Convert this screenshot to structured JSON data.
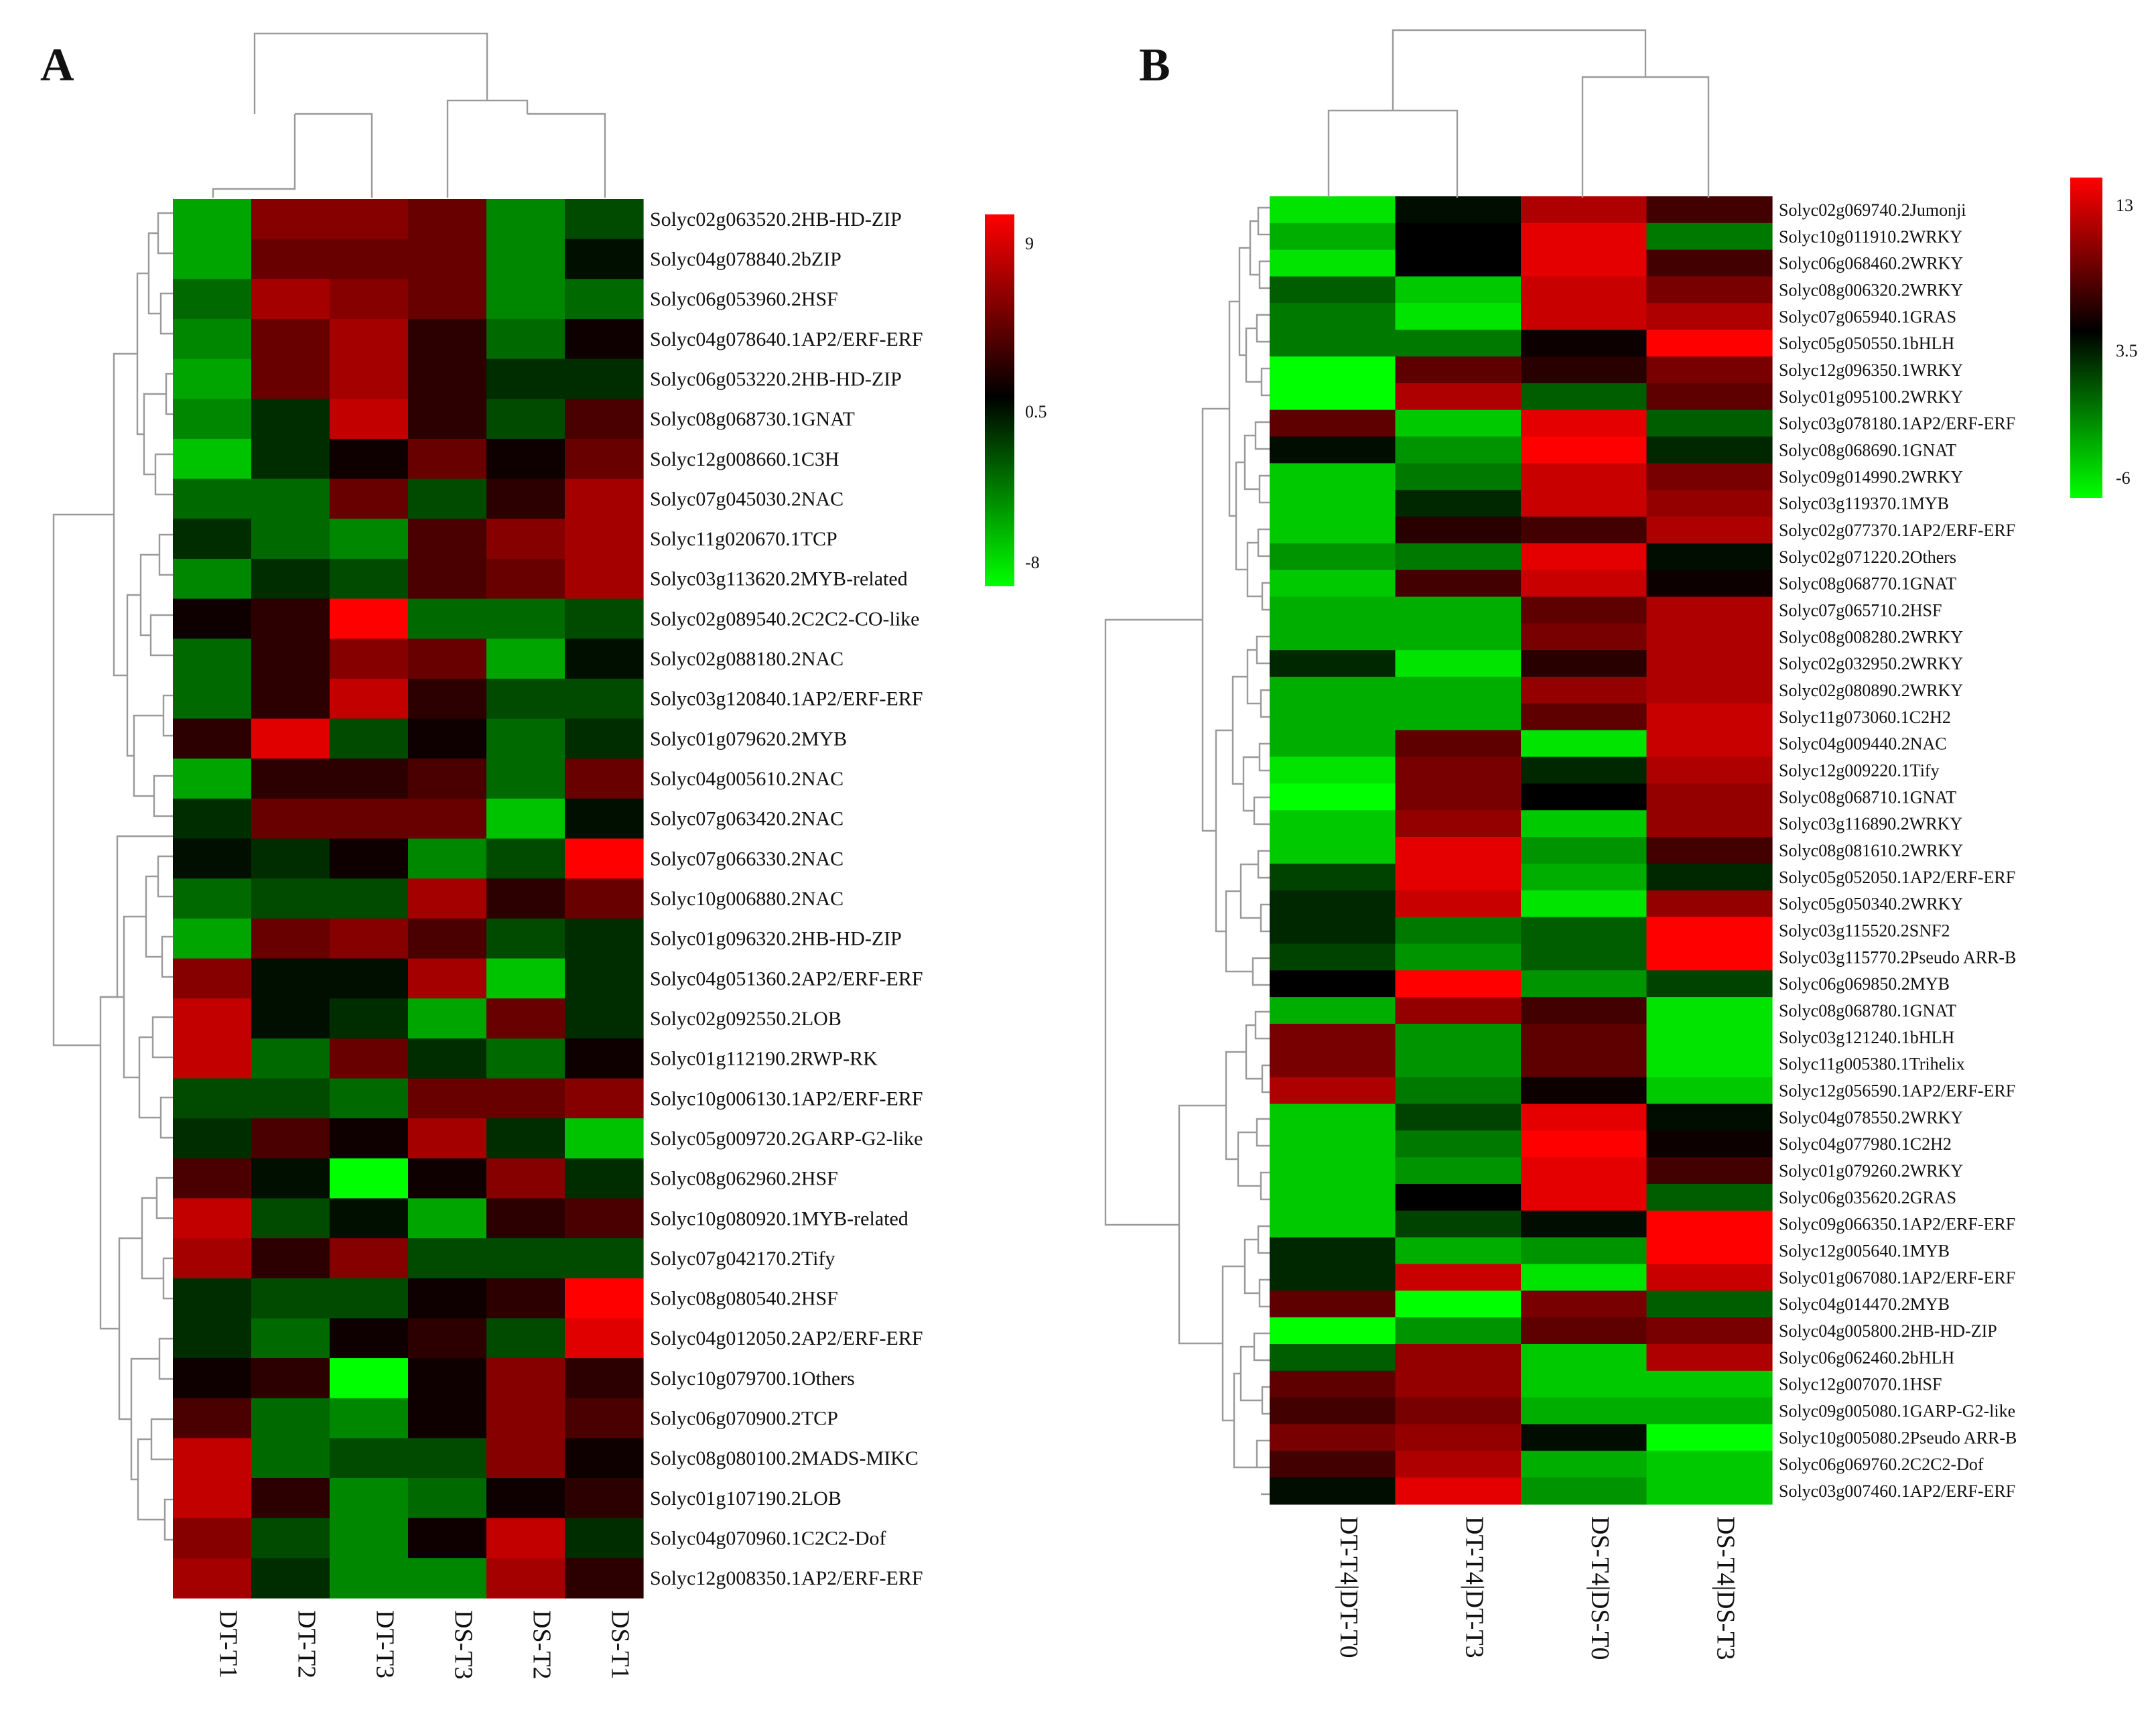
{
  "figure": {
    "panels": [
      "A",
      "B"
    ],
    "colors": {
      "low": "#00ff00",
      "mid": "#000000",
      "high": "#ff0000"
    }
  },
  "chart_data": [
    {
      "type": "heatmap",
      "panel": "A",
      "columns": [
        "DT-T1",
        "DT-T2",
        "DT-T3",
        "DS-T3",
        "DS-T2",
        "DS-T1"
      ],
      "rows": [
        "Solyc02g063520.2HB-HD-ZIP",
        "Solyc04g078840.2bZIP",
        "Solyc06g053960.2HSF",
        "Solyc04g078640.1AP2/ERF-ERF",
        "Solyc06g053220.2HB-HD-ZIP",
        "Solyc08g068730.1GNAT",
        "Solyc12g008660.1C3H",
        "Solyc07g045030.2NAC",
        "Solyc11g020670.1TCP",
        "Solyc03g113620.2MYB-related",
        "Solyc02g089540.2C2C2-CO-like",
        "Solyc02g088180.2NAC",
        "Solyc03g120840.1AP2/ERF-ERF",
        "Solyc01g079620.2MYB",
        "Solyc04g005610.2NAC",
        "Solyc07g063420.2NAC",
        "Solyc07g066330.2NAC",
        "Solyc10g006880.2NAC",
        "Solyc01g096320.2HB-HD-ZIP",
        "Solyc04g051360.2AP2/ERF-ERF",
        "Solyc02g092550.2LOB",
        "Solyc01g112190.2RWP-RK",
        "Solyc10g006130.1AP2/ERF-ERF",
        "Solyc05g009720.2GARP-G2-like",
        "Solyc08g062960.2HSF",
        "Solyc10g080920.1MYB-related",
        "Solyc07g042170.2Tify",
        "Solyc08g080540.2HSF",
        "Solyc04g012050.2AP2/ERF-ERF",
        "Solyc10g079700.1Others",
        "Solyc06g070900.2TCP",
        "Solyc08g080100.2MADS-MIKC",
        "Solyc01g107190.2LOB",
        "Solyc04g070960.1C2C2-Dof",
        "Solyc12g008350.1AP2/ERF-ERF"
      ],
      "values": [
        [
          -5,
          5,
          5,
          4,
          -4,
          -2
        ],
        [
          -5,
          4,
          4,
          4,
          -4,
          0
        ],
        [
          -3,
          6,
          5,
          4,
          -4,
          -3
        ],
        [
          -4,
          4,
          6,
          2,
          -3,
          1
        ],
        [
          -5,
          4,
          6,
          2,
          -1,
          -1
        ],
        [
          -4,
          -1,
          7,
          2,
          -2,
          3
        ],
        [
          -6,
          -1,
          1,
          4,
          1,
          4
        ],
        [
          -3,
          -3,
          4,
          -2,
          2,
          6
        ],
        [
          -1,
          -3,
          -4,
          3,
          5,
          6
        ],
        [
          -4,
          -1,
          -2,
          3,
          4,
          6
        ],
        [
          1,
          2,
          9,
          -3,
          -3,
          -2
        ],
        [
          -3,
          2,
          5,
          4,
          -5,
          0
        ],
        [
          -3,
          2,
          7,
          2,
          -2,
          -2
        ],
        [
          2,
          8,
          -2,
          1,
          -3,
          -1
        ],
        [
          -5,
          2,
          2,
          3,
          -3,
          4
        ],
        [
          -1,
          4,
          4,
          4,
          -6,
          0
        ],
        [
          0,
          -1,
          1,
          -4,
          -2,
          9
        ],
        [
          -3,
          -2,
          -2,
          6,
          2,
          4
        ],
        [
          -5,
          4,
          5,
          3,
          -2,
          -1
        ],
        [
          5,
          0,
          0,
          6,
          -6,
          -1
        ],
        [
          7,
          0,
          -1,
          -5,
          4,
          -1
        ],
        [
          7,
          -3,
          4,
          -1,
          -3,
          1
        ],
        [
          -2,
          -2,
          -3,
          4,
          4,
          5
        ],
        [
          -1,
          3,
          1,
          6,
          -1,
          -6
        ],
        [
          3,
          0,
          -8,
          1,
          5,
          -1
        ],
        [
          7,
          -2,
          0,
          -5,
          2,
          3
        ],
        [
          6,
          2,
          5,
          -2,
          -2,
          -2
        ],
        [
          -1,
          -2,
          -2,
          1,
          2,
          9
        ],
        [
          -1,
          -3,
          1,
          2,
          -2,
          8
        ],
        [
          1,
          2,
          -8,
          1,
          5,
          2
        ],
        [
          3,
          -3,
          -4,
          1,
          5,
          3
        ],
        [
          7,
          -3,
          -2,
          -2,
          5,
          1
        ],
        [
          7,
          2,
          -4,
          -3,
          1,
          2
        ],
        [
          5,
          -2,
          -4,
          1,
          7,
          -1
        ],
        [
          6,
          -1,
          -4,
          -4,
          6,
          2
        ]
      ],
      "legend": {
        "max": 9,
        "mid": 0.5,
        "min": -8,
        "ticks": [
          "9",
          "0.5",
          "-8"
        ]
      }
    },
    {
      "type": "heatmap",
      "panel": "B",
      "columns": [
        "DT-T4|DT-T0",
        "DT-T4|DT-T3",
        "DS-T4|DS-T0",
        "DS-T4|DS-T3"
      ],
      "rows": [
        "Solyc02g069740.2Jumonji",
        "Solyc10g011910.2WRKY",
        "Solyc06g068460.2WRKY",
        "Solyc08g006320.2WRKY",
        "Solyc07g065940.1GRAS",
        "Solyc05g050550.1bHLH",
        "Solyc12g096350.1WRKY",
        "Solyc01g095100.2WRKY",
        "Solyc03g078180.1AP2/ERF-ERF",
        "Solyc08g068690.1GNAT",
        "Solyc09g014990.2WRKY",
        "Solyc03g119370.1MYB",
        "Solyc02g077370.1AP2/ERF-ERF",
        "Solyc02g071220.2Others",
        "Solyc08g068770.1GNAT",
        "Solyc07g065710.2HSF",
        "Solyc08g008280.2WRKY",
        "Solyc02g032950.2WRKY",
        "Solyc02g080890.2WRKY",
        "Solyc11g073060.1C2H2",
        "Solyc04g009440.2NAC",
        "Solyc12g009220.1Tify",
        "Solyc08g068710.1GNAT",
        "Solyc03g116890.2WRKY",
        "Solyc08g081610.2WRKY",
        "Solyc05g052050.1AP2/ERF-ERF",
        "Solyc05g050340.2WRKY",
        "Solyc03g115520.2SNF2",
        "Solyc03g115770.2Pseudo ARR-B",
        "Solyc06g069850.2MYB",
        "Solyc08g068780.1GNAT",
        "Solyc03g121240.1bHLH",
        "Solyc11g005380.1Trihelix",
        "Solyc12g056590.1AP2/ERF-ERF",
        "Solyc04g078550.2WRKY",
        "Solyc04g077980.1C2H2",
        "Solyc01g079260.2WRKY",
        "Solyc06g035620.2GRAS",
        "Solyc09g066350.1AP2/ERF-ERF",
        "Solyc12g005640.1MYB",
        "Solyc01g067080.1AP2/ERF-ERF",
        "Solyc04g014470.2MYB",
        "Solyc04g005800.2HB-HD-ZIP",
        "Solyc06g062460.2bHLH",
        "Solyc12g007070.1HSF",
        "Solyc09g005080.1GARP-G2-like",
        "Solyc10g005080.2Pseudo ARR-B",
        "Solyc06g069760.2C2C2-Dof",
        "Solyc03g007460.1AP2/ERF-ERF"
      ],
      "values": [
        [
          -5,
          3,
          10,
          6
        ],
        [
          -3,
          3.5,
          12,
          -1
        ],
        [
          -5,
          3.5,
          12,
          6
        ],
        [
          0,
          -4,
          11,
          8
        ],
        [
          -1,
          -5,
          11,
          10
        ],
        [
          -1,
          -1,
          4,
          13
        ],
        [
          -6,
          7,
          5,
          8
        ],
        [
          -6,
          10,
          0,
          7
        ],
        [
          7,
          -4,
          12,
          0
        ],
        [
          3,
          -2,
          13,
          2
        ],
        [
          -4,
          -1,
          11,
          8
        ],
        [
          -4,
          2,
          11,
          9
        ],
        [
          -4,
          5,
          6,
          10
        ],
        [
          -2,
          -1,
          12,
          3
        ],
        [
          -4,
          6,
          11,
          4
        ],
        [
          -3,
          -3,
          7,
          10
        ],
        [
          -3,
          -3,
          8,
          10
        ],
        [
          2,
          -5,
          5,
          10
        ],
        [
          -3,
          -3,
          9,
          10
        ],
        [
          -3,
          -3,
          7,
          11
        ],
        [
          -3,
          7,
          -5,
          11
        ],
        [
          -5,
          8,
          2,
          10
        ],
        [
          -6,
          8,
          3.5,
          9
        ],
        [
          -4,
          9,
          -4,
          9
        ],
        [
          -4,
          12,
          -2,
          6
        ],
        [
          1,
          12,
          -3,
          2
        ],
        [
          2,
          11,
          -5,
          9
        ],
        [
          2,
          -1,
          0,
          13
        ],
        [
          1,
          -2,
          0,
          13
        ],
        [
          3.5,
          13,
          -2,
          1
        ],
        [
          -3,
          9,
          6,
          -5
        ],
        [
          8,
          -2,
          7,
          -5
        ],
        [
          8,
          -2,
          7,
          -5
        ],
        [
          10,
          -1,
          4,
          -4
        ],
        [
          -4,
          1,
          12,
          3
        ],
        [
          -4,
          -1,
          13,
          4
        ],
        [
          -4,
          -2,
          12,
          6
        ],
        [
          -4,
          3.5,
          12,
          0
        ],
        [
          -4,
          1,
          3,
          13
        ],
        [
          2,
          -3,
          -2,
          13
        ],
        [
          2,
          11,
          -5,
          11
        ],
        [
          7,
          -6,
          8,
          0
        ],
        [
          -6,
          -2,
          7,
          8
        ],
        [
          0,
          9,
          -4,
          10
        ],
        [
          7,
          9,
          -4,
          -4
        ],
        [
          6,
          8,
          -3,
          -3
        ],
        [
          8,
          9,
          3,
          -6
        ],
        [
          6,
          10,
          -3,
          -4
        ],
        [
          3,
          12,
          -2,
          -4
        ]
      ],
      "legend": {
        "max": 13,
        "mid": 3.5,
        "min": -6,
        "ticks": [
          "13",
          "3.5",
          "-6"
        ]
      }
    }
  ]
}
